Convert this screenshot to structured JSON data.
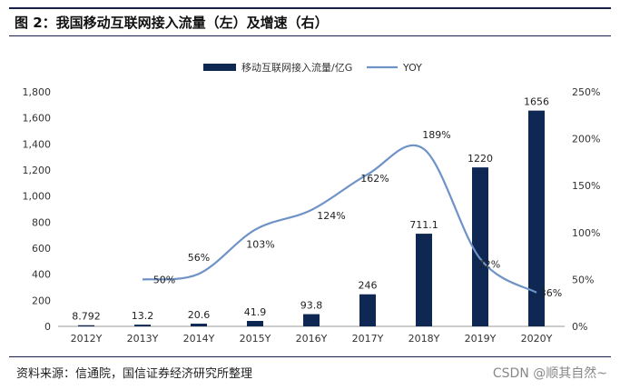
{
  "title": "图 2：我国移动互联网接入流量（左）及增速（右）",
  "source": "资料来源：信通院，国信证券经济研究所整理",
  "watermark": "CSDN @顺其自然~",
  "colors": {
    "bar": "#0e2753",
    "line": "#6f93c7",
    "rule": "#1a1f4a"
  },
  "chart_data": {
    "type": "bar+line",
    "categories": [
      "2012Y",
      "2013Y",
      "2014Y",
      "2015Y",
      "2016Y",
      "2017Y",
      "2018Y",
      "2019Y",
      "2020Y"
    ],
    "series": [
      {
        "name": "移动互联网接入流量/亿G",
        "type": "bar",
        "axis": "left",
        "values": [
          8.792,
          13.2,
          20.6,
          41.9,
          93.8,
          246,
          711.1,
          1220,
          1656
        ],
        "labels": [
          "8.792",
          "13.2",
          "20.6",
          "41.9",
          "93.8",
          "246",
          "711.1",
          "1220",
          "1656"
        ]
      },
      {
        "name": "YOY",
        "type": "line",
        "axis": "right",
        "values": [
          null,
          50,
          56,
          103,
          124,
          162,
          189,
          72,
          36
        ],
        "labels": [
          "",
          "50%",
          "56%",
          "103%",
          "124%",
          "162%",
          "189%",
          "72%",
          "36%"
        ]
      }
    ],
    "left_axis": {
      "ylim": [
        0,
        1800
      ],
      "ticks": [
        "0",
        "200",
        "400",
        "600",
        "800",
        "1,000",
        "1,200",
        "1,400",
        "1,600",
        "1,800"
      ]
    },
    "right_axis": {
      "ylim": [
        0,
        250
      ],
      "ticks": [
        "0%",
        "50%",
        "100%",
        "150%",
        "200%",
        "250%"
      ]
    },
    "legend_position": "top-center",
    "grid": false
  }
}
